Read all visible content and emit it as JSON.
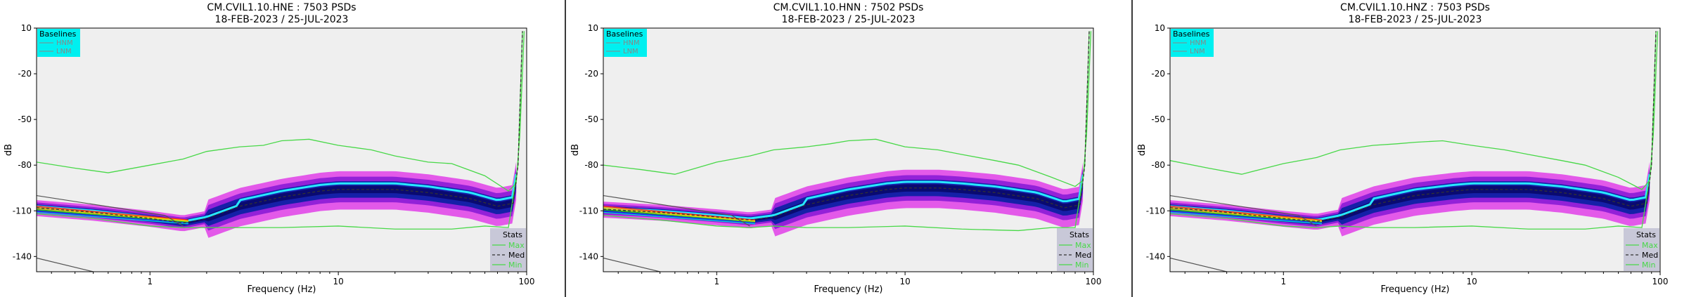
{
  "chart_data": [
    {
      "type": "heatmap",
      "title": "CM.CVIL1.10.HNE : 7503 PSDs",
      "subtitle": "18-FEB-2023 / 25-JUL-2023",
      "xlabel": "Frequency (Hz)",
      "ylabel": "dB",
      "xscale": "log",
      "xlim": [
        0.25,
        100
      ],
      "ylim": [
        -150,
        10
      ],
      "xticks": [
        "1",
        "10",
        "100"
      ],
      "yticks": [
        "10",
        "-20",
        "-50",
        "-80",
        "-110",
        "-140"
      ],
      "baselines_legend": {
        "title": "Baselines",
        "entries": [
          "HNM",
          "LNM"
        ],
        "color": "#00f0f0"
      },
      "stats_legend": {
        "title": "Stats",
        "entries": [
          "Max",
          "Med",
          "Min"
        ],
        "color": "#c8c8d8"
      },
      "max_curve": {
        "x": [
          0.25,
          0.4,
          0.6,
          1,
          1.5,
          2,
          3,
          4,
          5,
          7,
          10,
          15,
          20,
          30,
          40,
          60,
          80,
          88,
          92,
          97
        ],
        "y": [
          -78,
          -82,
          -85,
          -80,
          -76,
          -71,
          -68,
          -67,
          -64,
          -63,
          -67,
          -70,
          -74,
          -78,
          -79,
          -87,
          -97,
          -92,
          -60,
          8
        ]
      },
      "median_curve": {
        "x": [
          0.25,
          0.5,
          1,
          1.5,
          2,
          3,
          5,
          8,
          10,
          15,
          20,
          30,
          50,
          70,
          85,
          90,
          95
        ],
        "y": [
          -108,
          -111,
          -115,
          -118,
          -115,
          -107,
          -101,
          -97,
          -96,
          -96,
          -96,
          -98,
          -102,
          -107,
          -105,
          -80,
          8
        ]
      },
      "min_curve": {
        "x": [
          0.25,
          0.5,
          1,
          1.5,
          2,
          3,
          5,
          10,
          20,
          40,
          60,
          80,
          90,
          95
        ],
        "y": [
          -112,
          -115,
          -120,
          -121,
          -121,
          -121,
          -121,
          -120,
          -122,
          -122,
          -120,
          -121,
          -80,
          8
        ]
      }
    },
    {
      "type": "heatmap",
      "title": "CM.CVIL1.10.HNN : 7502 PSDs",
      "subtitle": "18-FEB-2023 / 25-JUL-2023",
      "xlabel": "Frequency (Hz)",
      "ylabel": "dB",
      "xscale": "log",
      "xlim": [
        0.25,
        100
      ],
      "ylim": [
        -150,
        10
      ],
      "xticks": [
        "1",
        "10",
        "100"
      ],
      "yticks": [
        "10",
        "-20",
        "-50",
        "-80",
        "-110",
        "-140"
      ],
      "baselines_legend": {
        "title": "Baselines",
        "entries": [
          "HNM",
          "LNM"
        ],
        "color": "#00f0f0"
      },
      "stats_legend": {
        "title": "Stats",
        "entries": [
          "Max",
          "Med",
          "Min"
        ],
        "color": "#c8c8d8"
      },
      "max_curve": {
        "x": [
          0.25,
          0.4,
          0.6,
          1,
          1.5,
          2,
          3,
          4,
          5,
          7,
          10,
          15,
          20,
          30,
          40,
          60,
          80,
          88,
          92,
          97
        ],
        "y": [
          -80,
          -83,
          -86,
          -78,
          -74,
          -70,
          -68,
          -66,
          -64,
          -63,
          -68,
          -70,
          -73,
          -77,
          -80,
          -88,
          -94,
          -90,
          -60,
          8
        ]
      },
      "median_curve": {
        "x": [
          0.25,
          0.5,
          1,
          1.5,
          2,
          3,
          5,
          8,
          10,
          15,
          20,
          30,
          50,
          70,
          85,
          90,
          95
        ],
        "y": [
          -109,
          -111,
          -114,
          -116,
          -114,
          -106,
          -100,
          -96,
          -95,
          -95,
          -96,
          -98,
          -102,
          -108,
          -106,
          -80,
          8
        ]
      },
      "min_curve": {
        "x": [
          0.25,
          0.5,
          1,
          1.5,
          2,
          3,
          5,
          10,
          20,
          40,
          60,
          80,
          90,
          95
        ],
        "y": [
          -113,
          -116,
          -120,
          -121,
          -120,
          -121,
          -121,
          -120,
          -122,
          -123,
          -121,
          -121,
          -80,
          8
        ]
      }
    },
    {
      "type": "heatmap",
      "title": "CM.CVIL1.10.HNZ : 7503 PSDs",
      "subtitle": "18-FEB-2023 / 25-JUL-2023",
      "xlabel": "Frequency (Hz)",
      "ylabel": "dB",
      "xscale": "log",
      "xlim": [
        0.25,
        100
      ],
      "ylim": [
        -150,
        10
      ],
      "xticks": [
        "1",
        "10",
        "100"
      ],
      "yticks": [
        "10",
        "-20",
        "-50",
        "-80",
        "-110",
        "-140"
      ],
      "baselines_legend": {
        "title": "Baselines",
        "entries": [
          "HNM",
          "LNM"
        ],
        "color": "#00f0f0"
      },
      "stats_legend": {
        "title": "Stats",
        "entries": [
          "Max",
          "Med",
          "Min"
        ],
        "color": "#c8c8d8"
      },
      "max_curve": {
        "x": [
          0.25,
          0.4,
          0.6,
          1,
          1.5,
          2,
          3,
          4,
          5,
          7,
          10,
          15,
          20,
          30,
          40,
          60,
          80,
          88,
          92,
          97
        ],
        "y": [
          -77,
          -82,
          -86,
          -79,
          -75,
          -70,
          -67,
          -66,
          -65,
          -64,
          -67,
          -70,
          -73,
          -77,
          -80,
          -88,
          -96,
          -90,
          -60,
          8
        ]
      },
      "median_curve": {
        "x": [
          0.25,
          0.5,
          1,
          1.5,
          2,
          3,
          5,
          8,
          10,
          15,
          20,
          30,
          50,
          70,
          85,
          90,
          95
        ],
        "y": [
          -108,
          -111,
          -115,
          -117,
          -114,
          -106,
          -100,
          -97,
          -96,
          -96,
          -96,
          -98,
          -102,
          -107,
          -105,
          -80,
          8
        ]
      },
      "min_curve": {
        "x": [
          0.25,
          0.5,
          1,
          1.5,
          2,
          3,
          5,
          10,
          20,
          40,
          60,
          80,
          90,
          95
        ],
        "y": [
          -112,
          -115,
          -120,
          -121,
          -120,
          -121,
          -121,
          -120,
          -122,
          -122,
          -120,
          -121,
          -80,
          8
        ]
      }
    }
  ],
  "colors": {
    "plot_bg": "#efefef",
    "sparse_psd": "#f2a3f5",
    "magenta": "#e03ee8",
    "purple": "#8a1bd6",
    "dark_blue": "#1520a8",
    "navy": "#0a0a70",
    "cyan": "#28e8ff",
    "max_line": "#48d848",
    "min_line": "#48d848",
    "median_line": "#333333",
    "model_line": "#555555",
    "legend_baselines_bg": "#00f0f0",
    "legend_stats_bg": "#c8c8d8"
  }
}
